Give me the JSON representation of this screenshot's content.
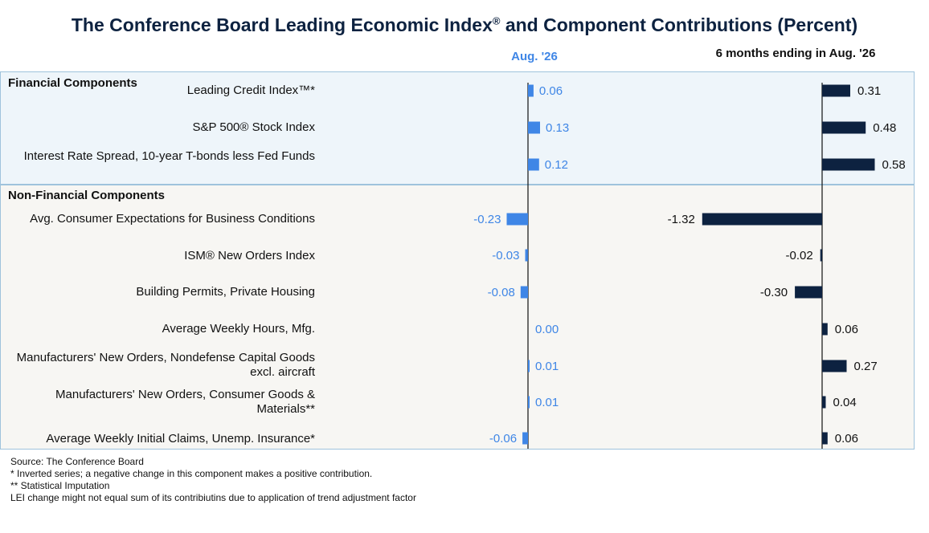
{
  "title": "The Conference Board Leading Economic Index",
  "title_mark": "®",
  "title_rest": " and Component Contributions (Percent)",
  "col_headers": {
    "month": "Aug.  '26",
    "six_month": "6 months ending in Aug.  '26"
  },
  "sections": {
    "financial": "Financial Components",
    "non_financial": "Non-Financial Components"
  },
  "colors": {
    "month_bar": "#3f86e6",
    "six_month_bar": "#0d2240",
    "financial_bg": "#eef5fa",
    "non_financial_bg": "#f7f6f3"
  },
  "chart_data": {
    "type": "bar",
    "orientation": "horizontal",
    "categories": [
      "Leading Credit Index™*",
      "S&P 500® Stock Index",
      "Interest Rate Spread, 10-year T-bonds less Fed Funds",
      "Avg. Consumer Expectations for Business Conditions",
      "ISM® New Orders Index",
      "Building Permits, Private Housing",
      "Average Weekly Hours, Mfg.",
      "Manufacturers' New Orders, Nondefense Capital Goods excl. aircraft",
      "Manufacturers' New Orders, Consumer Goods & Materials**",
      "Average Weekly Initial Claims, Unemp. Insurance*"
    ],
    "series": [
      {
        "name": "Aug.  '26",
        "values": [
          0.06,
          0.13,
          0.12,
          -0.23,
          -0.03,
          -0.08,
          0.0,
          0.01,
          0.01,
          -0.06
        ],
        "labels": [
          "0.06",
          "0.13",
          "0.12",
          "-0.23",
          "-0.03",
          "-0.08",
          "0.00",
          "0.01",
          "0.01",
          "-0.06"
        ]
      },
      {
        "name": "6 months ending in Aug.  '26",
        "values": [
          0.31,
          0.48,
          0.58,
          -1.32,
          -0.02,
          -0.3,
          0.06,
          0.27,
          0.04,
          0.06
        ],
        "labels": [
          "0.31",
          "0.48",
          "0.58",
          "-1.32",
          "-0.02",
          "-0.30",
          "0.06",
          "0.27",
          "0.04",
          "0.06"
        ]
      }
    ]
  },
  "notes": [
    "Source: The Conference Board",
    "*  Inverted series; a negative change in this component makes a positive contribution.",
    "**  Statistical Imputation",
    "LEI change might not equal sum of its contribiutins due to application of trend adjustment factor"
  ]
}
